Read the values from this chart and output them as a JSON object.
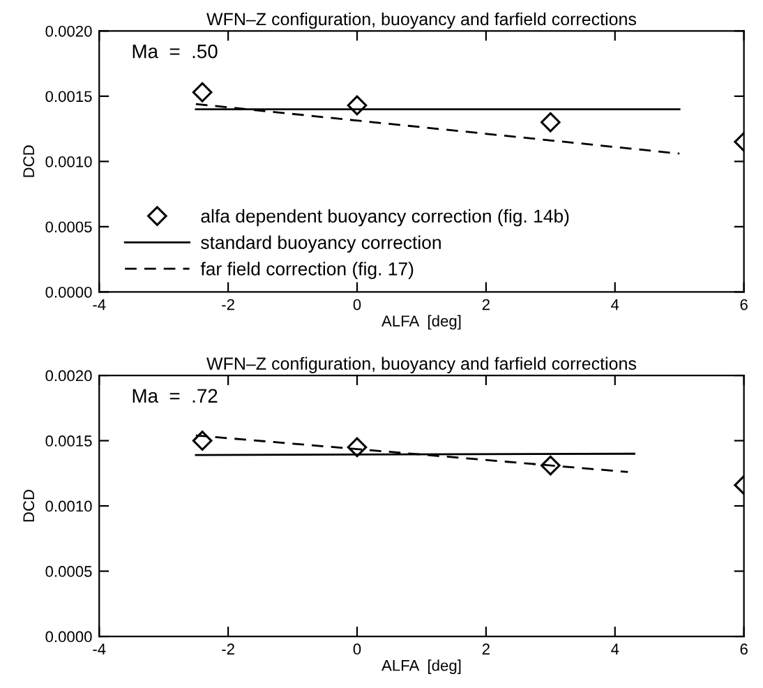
{
  "chart_data": [
    {
      "type": "scatter",
      "title": "WFN–Z configuration, buoyancy and farfield corrections",
      "xlabel": "ALFA  [deg]",
      "ylabel": "DCD",
      "annotations": [
        "Ma  =  .50"
      ],
      "xlim": [
        -4,
        6
      ],
      "xticks": [
        -4,
        -2,
        0,
        2,
        4,
        6
      ],
      "ylim": [
        0,
        0.002
      ],
      "yticks": [
        {
          "value": 0,
          "label": "0.0000"
        },
        {
          "value": 0.0005,
          "label": "0.0005"
        },
        {
          "value": 0.001,
          "label": "0.0010"
        },
        {
          "value": 0.0015,
          "label": "0.0015"
        },
        {
          "value": 0.002,
          "label": "0.0020"
        }
      ],
      "grid": false,
      "legend": "bottom left",
      "series": [
        {
          "name": "alfa dependent buoyancy correction (fig. 14b)",
          "marker": "diamond",
          "color": "#000000",
          "x": [
            -2.4,
            0.0,
            3.0,
            6.0
          ],
          "values": [
            0.00153,
            0.00143,
            0.0013,
            0.00115
          ]
        },
        {
          "name": "standard buoyancy correction",
          "type": "line",
          "line_style": "solid",
          "color": "#000000",
          "x": [
            -2.5,
            5.0
          ],
          "values": [
            0.0014,
            0.0014
          ]
        },
        {
          "name": "far field correction (fig. 17)",
          "type": "line",
          "line_style": "dashed",
          "color": "#000000",
          "x": [
            -2.5,
            5.0
          ],
          "values": [
            0.00144,
            0.00106
          ]
        }
      ]
    },
    {
      "type": "scatter",
      "title": "WFN–Z configuration, buoyancy and farfield corrections",
      "xlabel": "ALFA  [deg]",
      "ylabel": "DCD",
      "annotations": [
        "Ma  =  .72"
      ],
      "xlim": [
        -4,
        6
      ],
      "xticks": [
        -4,
        -2,
        0,
        2,
        4,
        6
      ],
      "ylim": [
        0,
        0.002
      ],
      "yticks": [
        {
          "value": 0,
          "label": "0.0000"
        },
        {
          "value": 0.0005,
          "label": "0.0005"
        },
        {
          "value": 0.001,
          "label": "0.0010"
        },
        {
          "value": 0.0015,
          "label": "0.0015"
        },
        {
          "value": 0.002,
          "label": "0.0020"
        }
      ],
      "grid": false,
      "series": [
        {
          "marker": "diamond",
          "color": "#000000",
          "x": [
            -2.4,
            0.0,
            3.0,
            6.0
          ],
          "values": [
            0.0015,
            0.00145,
            0.00131,
            0.00116
          ]
        },
        {
          "type": "line",
          "line_style": "solid",
          "color": "#000000",
          "x": [
            -2.5,
            4.3
          ],
          "values": [
            0.00139,
            0.0014
          ]
        },
        {
          "type": "line",
          "line_style": "dashed",
          "color": "#000000",
          "x": [
            -2.5,
            4.2
          ],
          "values": [
            0.00154,
            0.00126
          ]
        }
      ]
    }
  ]
}
